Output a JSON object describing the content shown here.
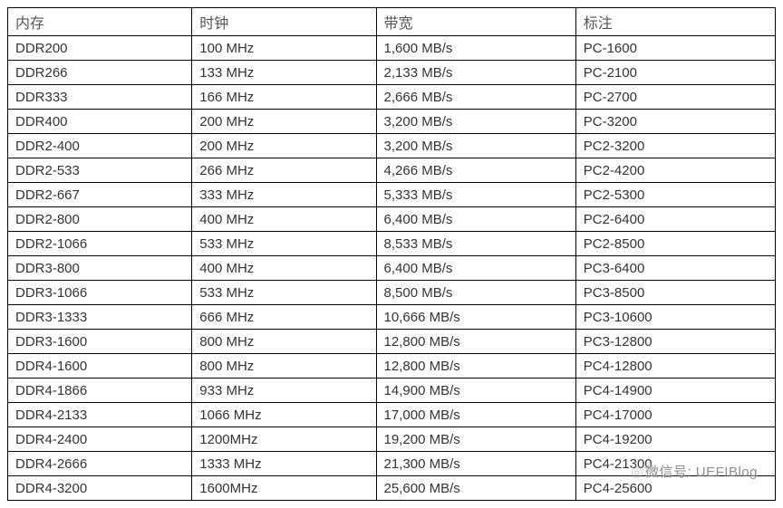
{
  "table": {
    "type": "table",
    "background_color": "#ffffff",
    "border_color": "#000000",
    "text_color": "#333333",
    "header_text_color": "#555555",
    "fontsize": 15,
    "header_fontsize": 16,
    "columns": [
      {
        "key": "memory",
        "label": "内存",
        "width_pct": 24
      },
      {
        "key": "clock",
        "label": "时钟",
        "width_pct": 24
      },
      {
        "key": "bandwidth",
        "label": "带宽",
        "width_pct": 26
      },
      {
        "key": "note",
        "label": "标注",
        "width_pct": 26
      }
    ],
    "rows": [
      {
        "memory": "DDR200",
        "clock": "100 MHz",
        "bandwidth": "1,600 MB/s",
        "note": "PC-1600"
      },
      {
        "memory": "DDR266",
        "clock": "133 MHz",
        "bandwidth": "2,133 MB/s",
        "note": "PC-2100"
      },
      {
        "memory": "DDR333",
        "clock": "166 MHz",
        "bandwidth": "2,666 MB/s",
        "note": "PC-2700"
      },
      {
        "memory": "DDR400",
        "clock": "200 MHz",
        "bandwidth": "3,200 MB/s",
        "note": "PC-3200"
      },
      {
        "memory": "DDR2-400",
        "clock": "200 MHz",
        "bandwidth": "3,200 MB/s",
        "note": "PC2-3200"
      },
      {
        "memory": "DDR2-533",
        "clock": "266 MHz",
        "bandwidth": "4,266 MB/s",
        "note": "PC2-4200"
      },
      {
        "memory": "DDR2-667",
        "clock": "333 MHz",
        "bandwidth": "5,333 MB/s",
        "note": "PC2-5300"
      },
      {
        "memory": "DDR2-800",
        "clock": "400 MHz",
        "bandwidth": "6,400 MB/s",
        "note": "PC2-6400"
      },
      {
        "memory": "DDR2-1066",
        "clock": "533 MHz",
        "bandwidth": "8,533 MB/s",
        "note": "PC2-8500"
      },
      {
        "memory": "DDR3-800",
        "clock": "400 MHz",
        "bandwidth": "6,400 MB/s",
        "note": "PC3-6400"
      },
      {
        "memory": "DDR3-1066",
        "clock": "533 MHz",
        "bandwidth": "8,500 MB/s",
        "note": "PC3-8500"
      },
      {
        "memory": "DDR3-1333",
        "clock": "666 MHz",
        "bandwidth": "10,666 MB/s",
        "note": "PC3-10600"
      },
      {
        "memory": "DDR3-1600",
        "clock": "800 MHz",
        "bandwidth": "12,800 MB/s",
        "note": "PC3-12800"
      },
      {
        "memory": "DDR4-1600",
        "clock": "800 MHz",
        "bandwidth": "12,800 MB/s",
        "note": "PC4-12800"
      },
      {
        "memory": "DDR4-1866",
        "clock": "933 MHz",
        "bandwidth": "14,900 MB/s",
        "note": "PC4-14900"
      },
      {
        "memory": "DDR4-2133",
        "clock": "1066 MHz",
        "bandwidth": "17,000 MB/s",
        "note": "PC4-17000"
      },
      {
        "memory": "DDR4-2400",
        "clock": "1200MHz",
        "bandwidth": "19,200 MB/s",
        "note": "PC4-19200"
      },
      {
        "memory": "DDR4-2666",
        "clock": "1333 MHz",
        "bandwidth": "21,300 MB/s",
        "note": "PC4-21300"
      },
      {
        "memory": "DDR4-3200",
        "clock": "1600MHz",
        "bandwidth": "25,600 MB/s",
        "note": "PC4-25600"
      }
    ]
  },
  "watermark": {
    "prefix_icon": "wechat-icon",
    "text": "微信号: UEFIBlog"
  }
}
